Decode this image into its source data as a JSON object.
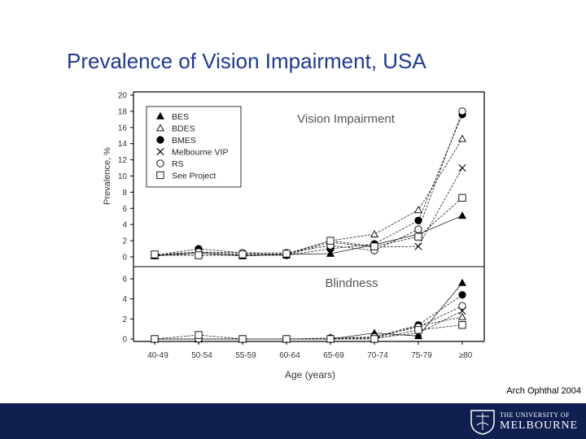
{
  "slide": {
    "title": "Prevalence of Vision Impairment, USA",
    "citation": "Arch Ophthal 2004",
    "logo": {
      "line1": "THE UNIVERSITY OF",
      "line2": "MELBOURNE"
    }
  },
  "colors": {
    "title": "#1f3a8f",
    "footer": "#0f1f4f"
  },
  "chart_data": [
    {
      "type": "line",
      "title": "Vision Impairment",
      "xlabel": "",
      "ylabel": "Prevalence, %",
      "categories": [
        "40-49",
        "50-54",
        "55-59",
        "60-64",
        "65-69",
        "70-74",
        "75-79",
        "≥80"
      ],
      "ylim": [
        0,
        20
      ],
      "yticks": [
        0,
        2,
        4,
        6,
        8,
        10,
        12,
        14,
        16,
        18,
        20
      ],
      "legend_position": "top-left",
      "series": [
        {
          "name": "BES",
          "marker": "triangle-filled",
          "values": [
            0.1,
            0.5,
            0.1,
            0.3,
            0.4,
            1.5,
            2.8,
            5.1
          ]
        },
        {
          "name": "BDES",
          "marker": "triangle-open",
          "values": [
            0.2,
            0.6,
            0.3,
            0.3,
            2.0,
            2.8,
            5.8,
            14.6
          ]
        },
        {
          "name": "BMES",
          "marker": "circle-filled",
          "values": [
            0.2,
            1.0,
            0.5,
            0.2,
            1.0,
            1.6,
            4.5,
            17.6
          ]
        },
        {
          "name": "Melbourne VIP",
          "marker": "x",
          "values": [
            0.2,
            0.2,
            0.2,
            0.2,
            1.8,
            1.2,
            1.3,
            11.0
          ]
        },
        {
          "name": "RS",
          "marker": "circle-open",
          "values": [
            0.3,
            0.6,
            0.5,
            0.5,
            1.4,
            0.8,
            3.4,
            18.0
          ]
        },
        {
          "name": "See Project",
          "marker": "square-open",
          "values": [
            0.3,
            0.2,
            0.3,
            0.4,
            2.0,
            1.3,
            2.5,
            7.3
          ]
        }
      ]
    },
    {
      "type": "line",
      "title": "Blindness",
      "xlabel": "Age (years)",
      "ylabel": "",
      "categories": [
        "40-49",
        "50-54",
        "55-59",
        "60-64",
        "65-69",
        "70-74",
        "75-79",
        "≥80"
      ],
      "ylim": [
        0,
        6
      ],
      "yticks": [
        0,
        2,
        4,
        6
      ],
      "series": [
        {
          "name": "BES",
          "marker": "triangle-filled",
          "values": [
            0.0,
            0.0,
            0.0,
            0.0,
            0.0,
            0.6,
            0.3,
            5.6
          ]
        },
        {
          "name": "BDES",
          "marker": "triangle-open",
          "values": [
            0.0,
            0.0,
            0.0,
            0.0,
            0.0,
            0.1,
            1.3,
            2.2
          ]
        },
        {
          "name": "BMES",
          "marker": "circle-filled",
          "values": [
            0.0,
            0.0,
            0.0,
            0.0,
            0.1,
            0.2,
            1.4,
            4.4
          ]
        },
        {
          "name": "Melbourne VIP",
          "marker": "x",
          "values": [
            0.0,
            0.0,
            0.0,
            0.0,
            0.0,
            0.1,
            0.6,
            2.8
          ]
        },
        {
          "name": "RS",
          "marker": "circle-open",
          "values": [
            0.0,
            0.0,
            0.0,
            0.0,
            0.0,
            0.2,
            1.2,
            3.3
          ]
        },
        {
          "name": "See Project",
          "marker": "square-open",
          "values": [
            0.0,
            0.4,
            0.0,
            0.0,
            0.0,
            0.0,
            0.9,
            1.4
          ]
        }
      ]
    }
  ]
}
